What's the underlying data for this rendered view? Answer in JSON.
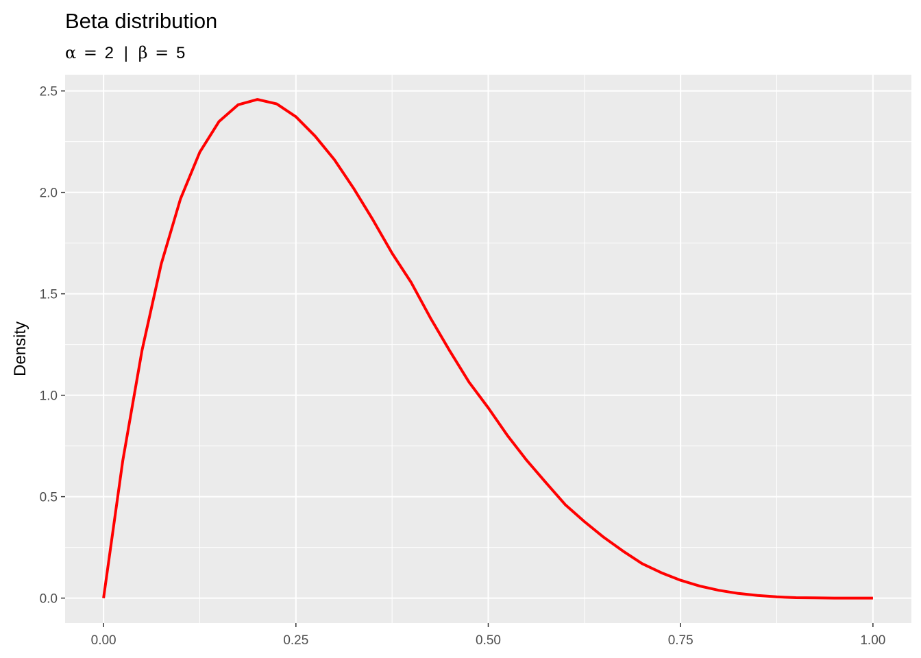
{
  "chart_data": {
    "type": "line",
    "title": "Beta distribution",
    "subtitle": {
      "alpha_symbol": "α",
      "alpha_value": "2",
      "separator": "|",
      "beta_symbol": "β",
      "beta_value": "5",
      "equals": "="
    },
    "xlabel": "",
    "ylabel": "Density",
    "xlim": [
      -0.05,
      1.05
    ],
    "ylim": [
      -0.123,
      2.58
    ],
    "x_ticks": [
      0,
      0.25,
      0.5,
      0.75,
      1.0
    ],
    "x_tick_labels": [
      "0.00",
      "0.25",
      "0.50",
      "0.75",
      "1.00"
    ],
    "y_ticks": [
      0,
      0.5,
      1.0,
      1.5,
      2.0,
      2.5
    ],
    "y_tick_labels": [
      "0.0",
      "0.5",
      "1.0",
      "1.5",
      "2.0",
      "2.5"
    ],
    "grid": true,
    "legend": "none",
    "series": [
      {
        "color": "#ff0000",
        "x": [
          0.0,
          0.025,
          0.05,
          0.075,
          0.1,
          0.125,
          0.15,
          0.175,
          0.2,
          0.225,
          0.25,
          0.275,
          0.3,
          0.325,
          0.35,
          0.375,
          0.4,
          0.425,
          0.45,
          0.475,
          0.5,
          0.525,
          0.55,
          0.575,
          0.6,
          0.625,
          0.65,
          0.675,
          0.7,
          0.725,
          0.75,
          0.775,
          0.8,
          0.825,
          0.85,
          0.875,
          0.9,
          0.925,
          0.95,
          0.975,
          1.0
        ],
        "y": [
          0.0,
          0.678,
          1.222,
          1.647,
          1.968,
          2.198,
          2.349,
          2.432,
          2.458,
          2.436,
          2.373,
          2.277,
          2.161,
          2.02,
          1.865,
          1.7,
          1.555,
          1.38,
          1.218,
          1.065,
          0.938,
          0.801,
          0.679,
          0.569,
          0.461,
          0.377,
          0.3,
          0.232,
          0.17,
          0.125,
          0.088,
          0.059,
          0.038,
          0.023,
          0.013,
          0.006,
          0.002,
          0.001,
          0.0,
          0.0,
          0.0
        ]
      }
    ]
  }
}
